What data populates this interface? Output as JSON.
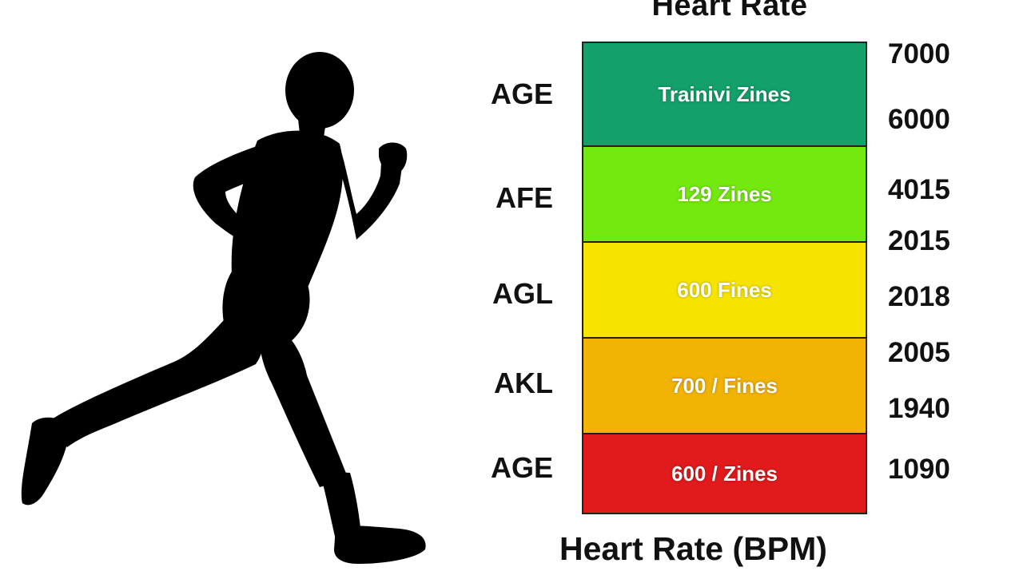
{
  "title": "Heart Rate",
  "axis_title": "Heart Rate (BPM)",
  "zones": [
    {
      "label": "Trainivi Zines",
      "color": "#13a06b",
      "age_label": "AGE"
    },
    {
      "label": "129 Zines",
      "color": "#74e90f",
      "age_label": "AFE"
    },
    {
      "label": "600 Fines",
      "color": "#f6e400",
      "age_label": "AGL"
    },
    {
      "label": "700 / Fines",
      "color": "#f2b305",
      "age_label": "AKL"
    },
    {
      "label": "600 / Zines",
      "color": "#e11a1c",
      "age_label": "AGE"
    }
  ],
  "bpm_labels": [
    "7000",
    "6000",
    "4015",
    "2015",
    "2018",
    "2005",
    "1940",
    "1090"
  ]
}
